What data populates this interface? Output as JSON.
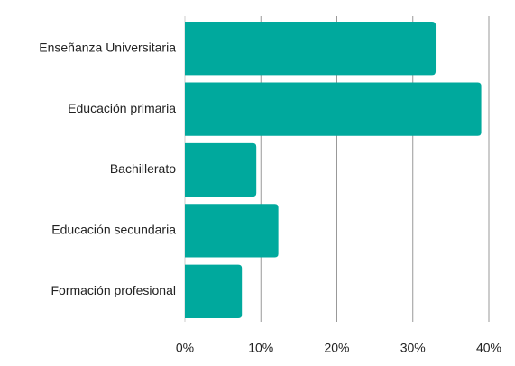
{
  "chart_data": {
    "type": "bar",
    "orientation": "horizontal",
    "categories": [
      "Enseñanza Universitaria",
      "Educación primaria",
      "Bachillerato",
      "Educación secundaria",
      "Formación profesional"
    ],
    "values": [
      33,
      39,
      9.4,
      12.3,
      7.5
    ],
    "color": "#00a99d",
    "xlim": [
      0,
      40
    ],
    "xticks": [
      {
        "value": 0,
        "label": "0%"
      },
      {
        "value": 10,
        "label": "10%"
      },
      {
        "value": 20,
        "label": "20%"
      },
      {
        "value": 30,
        "label": "30%"
      },
      {
        "value": 40,
        "label": "40%"
      }
    ],
    "grid": true
  }
}
